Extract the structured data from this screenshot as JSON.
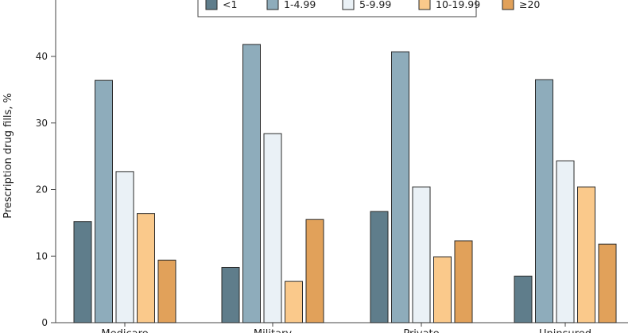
{
  "chart_data": {
    "type": "bar",
    "ylabel": "Prescription drug fills, %",
    "xlabel": "",
    "ylim": [
      0,
      44
    ],
    "yticks": [
      0,
      10,
      20,
      30,
      40
    ],
    "grid": false,
    "legend_position": "top-center",
    "categories": [
      "Medicare",
      "Military",
      "Private",
      "Uninsured"
    ],
    "series": [
      {
        "name": "<1",
        "color": "#5f7d8b",
        "values": [
          15.2,
          8.3,
          16.7,
          7.0
        ]
      },
      {
        "name": "1-4.99",
        "color": "#8eacbb",
        "values": [
          36.4,
          41.8,
          40.7,
          36.5
        ]
      },
      {
        "name": "5-9.99",
        "color": "#eaf1f6",
        "values": [
          22.7,
          28.4,
          20.4,
          24.3
        ]
      },
      {
        "name": "10-19.99",
        "color": "#fac98b",
        "values": [
          16.4,
          6.2,
          9.9,
          20.4
        ]
      },
      {
        "name": "≥20",
        "color": "#e1a15a",
        "values": [
          9.4,
          15.5,
          12.3,
          11.8
        ]
      }
    ]
  }
}
